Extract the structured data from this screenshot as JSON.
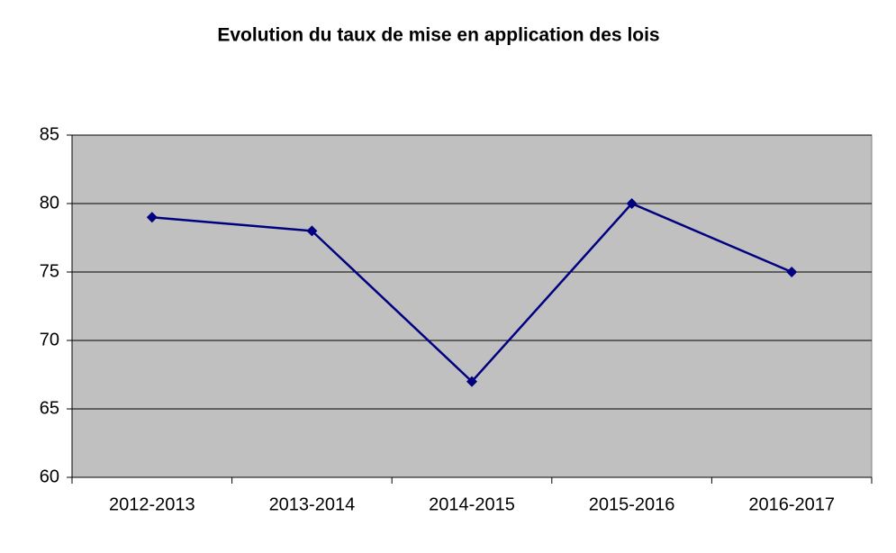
{
  "chart_data": {
    "type": "line",
    "title": "Evolution du taux de mise en application des lois",
    "categories": [
      "2012-2013",
      "2013-2014",
      "2014-2015",
      "2015-2016",
      "2016-2017"
    ],
    "values": [
      79,
      78,
      67,
      80,
      75
    ],
    "color": "#000080",
    "ylim": [
      60,
      85
    ],
    "yticks": [
      60,
      65,
      70,
      75,
      80,
      85
    ],
    "grid": true
  }
}
